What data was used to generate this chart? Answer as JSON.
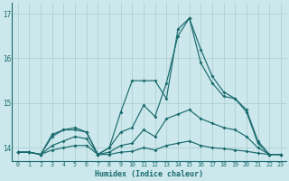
{
  "xlabel": "Humidex (Indice chaleur)",
  "background_color": "#cce8ec",
  "grid_color": "#aacccc",
  "line_color": "#1a6b6e",
  "xlim": [
    -0.5,
    23.5
  ],
  "ylim": [
    13.7,
    17.25
  ],
  "yticks": [
    14,
    15,
    16,
    17
  ],
  "xticks": [
    0,
    1,
    2,
    3,
    4,
    5,
    6,
    7,
    8,
    9,
    10,
    11,
    12,
    13,
    14,
    15,
    16,
    17,
    18,
    19,
    20,
    21,
    22,
    23
  ],
  "series": [
    [
      13.9,
      13.9,
      13.85,
      14.3,
      14.4,
      14.45,
      14.35,
      13.85,
      14.0,
      14.8,
      15.5,
      15.5,
      15.5,
      15.1,
      16.65,
      16.9,
      15.9,
      15.45,
      15.15,
      15.1,
      14.85,
      14.15,
      13.85,
      13.85
    ],
    [
      13.9,
      13.9,
      13.85,
      14.25,
      14.4,
      14.4,
      14.35,
      13.85,
      14.0,
      14.35,
      14.45,
      14.95,
      14.7,
      15.45,
      16.5,
      16.9,
      16.2,
      15.6,
      15.25,
      15.1,
      14.8,
      14.1,
      13.85,
      13.85
    ],
    [
      13.9,
      13.9,
      13.85,
      14.05,
      14.15,
      14.25,
      14.2,
      13.85,
      13.9,
      14.05,
      14.1,
      14.4,
      14.25,
      14.65,
      14.75,
      14.85,
      14.65,
      14.55,
      14.45,
      14.4,
      14.25,
      14.0,
      13.85,
      13.85
    ],
    [
      13.9,
      13.9,
      13.85,
      13.95,
      14.0,
      14.05,
      14.05,
      13.85,
      13.85,
      13.9,
      13.92,
      14.0,
      13.95,
      14.05,
      14.1,
      14.15,
      14.05,
      14.0,
      13.98,
      13.95,
      13.92,
      13.88,
      13.85,
      13.85
    ]
  ]
}
